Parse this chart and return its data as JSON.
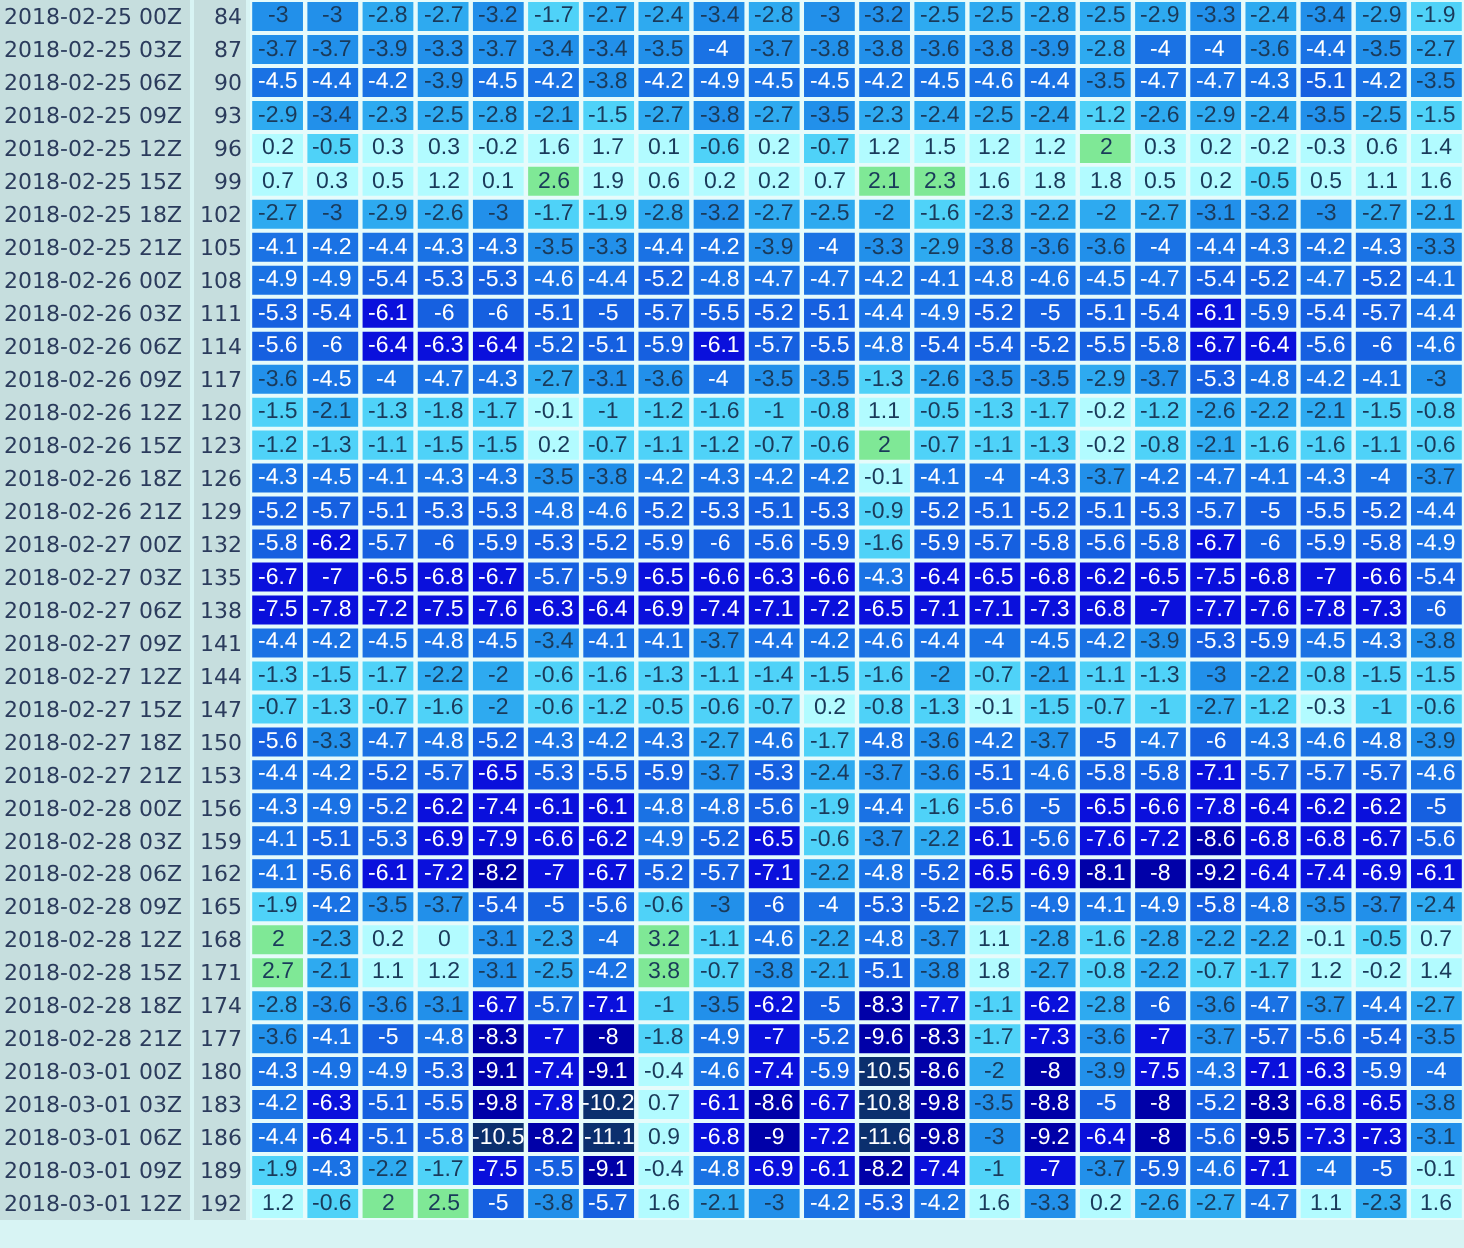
{
  "chart_data": {
    "type": "heatmap",
    "data_labels": true,
    "categories": [
      null,
      null,
      null,
      null,
      null,
      null,
      null,
      null,
      null,
      null,
      null,
      null,
      null,
      null,
      null,
      null,
      null,
      null,
      null,
      null,
      null,
      null
    ],
    "y_categories": [
      "2018-02-25 00Z",
      "2018-02-25 03Z",
      "2018-02-25 06Z",
      "2018-02-25 09Z",
      "2018-02-25 12Z",
      "2018-02-25 15Z",
      "2018-02-25 18Z",
      "2018-02-25 21Z",
      "2018-02-26 00Z",
      "2018-02-26 03Z",
      "2018-02-26 06Z",
      "2018-02-26 09Z",
      "2018-02-26 12Z",
      "2018-02-26 15Z",
      "2018-02-26 18Z",
      "2018-02-26 21Z",
      "2018-02-27 00Z",
      "2018-02-27 03Z",
      "2018-02-27 06Z",
      "2018-02-27 09Z",
      "2018-02-27 12Z",
      "2018-02-27 15Z",
      "2018-02-27 18Z",
      "2018-02-27 21Z",
      "2018-02-28 00Z",
      "2018-02-28 03Z",
      "2018-02-28 06Z",
      "2018-02-28 09Z",
      "2018-02-28 12Z",
      "2018-02-28 15Z",
      "2018-02-28 18Z",
      "2018-02-28 21Z",
      "2018-03-01 00Z",
      "2018-03-01 03Z",
      "2018-03-01 06Z",
      "2018-03-01 09Z",
      "2018-03-01 12Z"
    ],
    "y2_categories": [
      "84",
      "87",
      "90",
      "93",
      "96",
      "99",
      "102",
      "105",
      "108",
      "111",
      "114",
      "117",
      "120",
      "123",
      "126",
      "129",
      "132",
      "135",
      "138",
      "141",
      "144",
      "147",
      "150",
      "153",
      "156",
      "159",
      "162",
      "165",
      "168",
      "171",
      "174",
      "177",
      "180",
      "183",
      "186",
      "189",
      "192"
    ],
    "cells": [
      [
        -3,
        -3,
        -2.8,
        -2.7,
        -3.2,
        -1.7,
        -2.7,
        -2.4,
        -3.4,
        -2.8,
        -3,
        -3.2,
        -2.5,
        -2.5,
        -2.8,
        -2.5,
        -2.9,
        -3.3,
        -2.4,
        -3.4,
        -2.9,
        -1.9
      ],
      [
        -3.7,
        -3.7,
        -3.9,
        -3.3,
        -3.7,
        -3.4,
        -3.4,
        -3.5,
        -4,
        -3.7,
        -3.8,
        -3.8,
        -3.6,
        -3.8,
        -3.9,
        -2.8,
        -4,
        -4,
        -3.6,
        -4.4,
        -3.5,
        -2.7
      ],
      [
        -4.5,
        -4.4,
        -4.2,
        -3.9,
        -4.5,
        -4.2,
        -3.8,
        -4.2,
        -4.9,
        -4.5,
        -4.5,
        -4.2,
        -4.5,
        -4.6,
        -4.4,
        -3.5,
        -4.7,
        -4.7,
        -4.3,
        -5.1,
        -4.2,
        -3.5
      ],
      [
        -2.9,
        -3.4,
        -2.3,
        -2.5,
        -2.8,
        -2.1,
        -1.5,
        -2.7,
        -3.8,
        -2.7,
        -3.5,
        -2.3,
        -2.4,
        -2.5,
        -2.4,
        -1.2,
        -2.6,
        -2.9,
        -2.4,
        -3.5,
        -2.5,
        -1.5
      ],
      [
        0.2,
        -0.5,
        0.3,
        0.3,
        -0.2,
        1.6,
        1.7,
        0.1,
        -0.6,
        0.2,
        -0.7,
        1.2,
        1.5,
        1.2,
        1.2,
        2,
        0.3,
        0.2,
        -0.2,
        -0.3,
        0.6,
        1.4
      ],
      [
        0.7,
        0.3,
        0.5,
        1.2,
        0.1,
        2.6,
        1.9,
        0.6,
        0.2,
        0.2,
        0.7,
        2.1,
        2.3,
        1.6,
        1.8,
        1.8,
        0.5,
        0.2,
        -0.5,
        0.5,
        1.1,
        1.6
      ],
      [
        -2.7,
        -3,
        -2.9,
        -2.6,
        -3,
        -1.7,
        -1.9,
        -2.8,
        -3.2,
        -2.7,
        -2.5,
        -2,
        -1.6,
        -2.3,
        -2.2,
        -2,
        -2.7,
        -3.1,
        -3.2,
        -3,
        -2.7,
        -2.1
      ],
      [
        -4.1,
        -4.2,
        -4.4,
        -4.3,
        -4.3,
        -3.5,
        -3.3,
        -4.4,
        -4.2,
        -3.9,
        -4,
        -3.3,
        -2.9,
        -3.8,
        -3.6,
        -3.6,
        -4,
        -4.4,
        -4.3,
        -4.2,
        -4.3,
        -3.3
      ],
      [
        -4.9,
        -4.9,
        -5.4,
        -5.3,
        -5.3,
        -4.6,
        -4.4,
        -5.2,
        -4.8,
        -4.7,
        -4.7,
        -4.2,
        -4.1,
        -4.8,
        -4.6,
        -4.5,
        -4.7,
        -5.4,
        -5.2,
        -4.7,
        -5.2,
        -4.1
      ],
      [
        -5.3,
        -5.4,
        -6.1,
        -6,
        -6,
        -5.1,
        -5,
        -5.7,
        -5.5,
        -5.2,
        -5.1,
        -4.4,
        -4.9,
        -5.2,
        -5,
        -5.1,
        -5.4,
        -6.1,
        -5.9,
        -5.4,
        -5.7,
        -4.4
      ],
      [
        -5.6,
        -6,
        -6.4,
        -6.3,
        -6.4,
        -5.2,
        -5.1,
        -5.9,
        -6.1,
        -5.7,
        -5.5,
        -4.8,
        -5.4,
        -5.4,
        -5.2,
        -5.5,
        -5.8,
        -6.7,
        -6.4,
        -5.6,
        -6,
        -4.6
      ],
      [
        -3.6,
        -4.5,
        -4,
        -4.7,
        -4.3,
        -2.7,
        -3.1,
        -3.6,
        -4,
        -3.5,
        -3.5,
        -1.3,
        -2.6,
        -3.5,
        -3.5,
        -2.9,
        -3.7,
        -5.3,
        -4.8,
        -4.2,
        -4.1,
        -3
      ],
      [
        -1.5,
        -2.1,
        -1.3,
        -1.8,
        -1.7,
        -0.1,
        -1,
        -1.2,
        -1.6,
        -1,
        -0.8,
        1.1,
        -0.5,
        -1.3,
        -1.7,
        -0.2,
        -1.2,
        -2.6,
        -2.2,
        -2.1,
        -1.5,
        -0.8
      ],
      [
        -1.2,
        -1.3,
        -1.1,
        -1.5,
        -1.5,
        0.2,
        -0.7,
        -1.1,
        -1.2,
        -0.7,
        -0.6,
        2,
        -0.7,
        -1.1,
        -1.3,
        -0.2,
        -0.8,
        -2.1,
        -1.6,
        -1.6,
        -1.1,
        -0.6
      ],
      [
        -4.3,
        -4.5,
        -4.1,
        -4.3,
        -4.3,
        -3.5,
        -3.8,
        -4.2,
        -4.3,
        -4.2,
        -4.2,
        -0.1,
        -4.1,
        -4,
        -4.3,
        -3.7,
        -4.2,
        -4.7,
        -4.1,
        -4.3,
        -4,
        -3.7
      ],
      [
        -5.2,
        -5.7,
        -5.1,
        -5.3,
        -5.3,
        -4.8,
        -4.6,
        -5.2,
        -5.3,
        -5.1,
        -5.3,
        -0.9,
        -5.2,
        -5.1,
        -5.2,
        -5.1,
        -5.3,
        -5.7,
        -5,
        -5.5,
        -5.2,
        -4.4
      ],
      [
        -5.8,
        -6.2,
        -5.7,
        -6,
        -5.9,
        -5.3,
        -5.2,
        -5.9,
        -6,
        -5.6,
        -5.9,
        -1.6,
        -5.9,
        -5.7,
        -5.8,
        -5.6,
        -5.8,
        -6.7,
        -6,
        -5.9,
        -5.8,
        -4.9
      ],
      [
        -6.7,
        -7,
        -6.5,
        -6.8,
        -6.7,
        -5.7,
        -5.9,
        -6.5,
        -6.6,
        -6.3,
        -6.6,
        -4.3,
        -6.4,
        -6.5,
        -6.8,
        -6.2,
        -6.5,
        -7.5,
        -6.8,
        -7,
        -6.6,
        -5.4
      ],
      [
        -7.5,
        -7.8,
        -7.2,
        -7.5,
        -7.6,
        -6.3,
        -6.4,
        -6.9,
        -7.4,
        -7.1,
        -7.2,
        -6.5,
        -7.1,
        -7.1,
        -7.3,
        -6.8,
        -7,
        -7.7,
        -7.6,
        -7.8,
        -7.3,
        -6
      ],
      [
        -4.4,
        -4.2,
        -4.5,
        -4.8,
        -4.5,
        -3.4,
        -4.1,
        -4.1,
        -3.7,
        -4.4,
        -4.2,
        -4.6,
        -4.4,
        -4,
        -4.5,
        -4.2,
        -3.9,
        -5.3,
        -5.9,
        -4.5,
        -4.3,
        -3.8
      ],
      [
        -1.3,
        -1.5,
        -1.7,
        -2.2,
        -2,
        -0.6,
        -1.6,
        -1.3,
        -1.1,
        -1.4,
        -1.5,
        -1.6,
        -2,
        -0.7,
        -2.1,
        -1.1,
        -1.3,
        -3,
        -2.2,
        -0.8,
        -1.5,
        -1.5
      ],
      [
        -0.7,
        -1.3,
        -0.7,
        -1.6,
        -2,
        -0.6,
        -1.2,
        -0.5,
        -0.6,
        -0.7,
        0.2,
        -0.8,
        -1.3,
        -0.1,
        -1.5,
        -0.7,
        -1,
        -2.7,
        -1.2,
        -0.3,
        -1,
        -0.6
      ],
      [
        -5.6,
        -3.3,
        -4.7,
        -4.8,
        -5.2,
        -4.3,
        -4.2,
        -4.3,
        -2.7,
        -4.6,
        -1.7,
        -4.8,
        -3.6,
        -4.2,
        -3.7,
        -5,
        -4.7,
        -6,
        -4.3,
        -4.6,
        -4.8,
        -3.9
      ],
      [
        -4.4,
        -4.2,
        -5.2,
        -5.7,
        -6.5,
        -5.3,
        -5.5,
        -5.9,
        -3.7,
        -5.3,
        -2.4,
        -3.7,
        -3.6,
        -5.1,
        -4.6,
        -5.8,
        -5.8,
        -7.1,
        -5.7,
        -5.7,
        -5.7,
        -4.6
      ],
      [
        -4.3,
        -4.9,
        -5.2,
        -6.2,
        -7.4,
        -6.1,
        -6.1,
        -4.8,
        -4.8,
        -5.6,
        -1.9,
        -4.4,
        -1.6,
        -5.6,
        -5,
        -6.5,
        -6.6,
        -7.8,
        -6.4,
        -6.2,
        -6.2,
        -5
      ],
      [
        -4.1,
        -5.1,
        -5.3,
        -6.9,
        -7.9,
        -6.6,
        -6.2,
        -4.9,
        -5.2,
        -6.5,
        -0.6,
        -3.7,
        -2.2,
        -6.1,
        -5.6,
        -7.6,
        -7.2,
        -8.6,
        -6.8,
        -6.8,
        -6.7,
        -5.6
      ],
      [
        -4.1,
        -5.6,
        -6.1,
        -7.2,
        -8.2,
        -7,
        -6.7,
        -5.2,
        -5.7,
        -7.1,
        -2.2,
        -4.8,
        -5.2,
        -6.5,
        -6.9,
        -8.1,
        -8,
        -9.2,
        -6.4,
        -7.4,
        -6.9,
        -6.1
      ],
      [
        -1.9,
        -4.2,
        -3.5,
        -3.7,
        -5.4,
        -5,
        -5.6,
        -0.6,
        -3,
        -6,
        -4,
        -5.3,
        -5.2,
        -2.5,
        -4.9,
        -4.1,
        -4.9,
        -5.8,
        -4.8,
        -3.5,
        -3.7,
        -2.4
      ],
      [
        2,
        -2.3,
        0.2,
        0,
        -3.1,
        -2.3,
        -4,
        3.2,
        -1.1,
        -4.6,
        -2.2,
        -4.8,
        -3.7,
        1.1,
        -2.8,
        -1.6,
        -2.8,
        -2.2,
        -2.2,
        -0.1,
        -0.5,
        0.7
      ],
      [
        2.7,
        -2.1,
        1.1,
        1.2,
        -3.1,
        -2.5,
        -4.2,
        3.8,
        -0.7,
        -3.8,
        -2.1,
        -5.1,
        -3.8,
        1.8,
        -2.7,
        -0.8,
        -2.2,
        -0.7,
        -1.7,
        1.2,
        -0.2,
        1.4
      ],
      [
        -2.8,
        -3.6,
        -3.6,
        -3.1,
        -6.7,
        -5.7,
        -7.1,
        -1,
        -3.5,
        -6.2,
        -5,
        -8.3,
        -7.7,
        -1.1,
        -6.2,
        -2.8,
        -6,
        -3.6,
        -4.7,
        -3.7,
        -4.4,
        -2.7
      ],
      [
        -3.6,
        -4.1,
        -5,
        -4.8,
        -8.3,
        -7,
        -8,
        -1.8,
        -4.9,
        -7,
        -5.2,
        -9.6,
        -8.3,
        -1.7,
        -7.3,
        -3.6,
        -7,
        -3.7,
        -5.7,
        -5.6,
        -5.4,
        -3.5
      ],
      [
        -4.3,
        -4.9,
        -4.9,
        -5.3,
        -9.1,
        -7.4,
        -9.1,
        -0.4,
        -4.6,
        -7.4,
        -5.9,
        -10.5,
        -8.6,
        -2,
        -8,
        -3.9,
        -7.5,
        -4.3,
        -7.1,
        -6.3,
        -5.9,
        -4
      ],
      [
        -4.2,
        -6.3,
        -5.1,
        -5.5,
        -9.8,
        -7.8,
        -10.2,
        0.7,
        -6.1,
        -8.6,
        -6.7,
        -10.8,
        -9.8,
        -3.5,
        -8.8,
        -5,
        -8,
        -5.2,
        -8.3,
        -6.8,
        -6.5,
        -3.8
      ],
      [
        -4.4,
        -6.4,
        -5.1,
        -5.8,
        -10.5,
        -8.2,
        -11.1,
        0.9,
        -6.8,
        -9,
        -7.2,
        -11.6,
        -9.8,
        -3,
        -9.2,
        -6.4,
        -8,
        -5.6,
        -9.5,
        -7.3,
        -7.3,
        -3.1
      ],
      [
        -1.9,
        -4.3,
        -2.2,
        -1.7,
        -7.5,
        -5.5,
        -9.1,
        -0.4,
        -4.8,
        -6.9,
        -6.1,
        -8.2,
        -7.4,
        -1,
        -7,
        -3.7,
        -5.9,
        -4.6,
        -7.1,
        -4,
        -5,
        -0.1
      ],
      [
        1.2,
        -0.6,
        2,
        2.5,
        -5,
        -3.8,
        -5.7,
        1.6,
        -2.1,
        -3,
        -4.2,
        -5.3,
        -4.2,
        1.6,
        -3.3,
        0.2,
        -2.6,
        -2.7,
        -4.7,
        1.1,
        -2.3,
        1.6
      ]
    ]
  }
}
